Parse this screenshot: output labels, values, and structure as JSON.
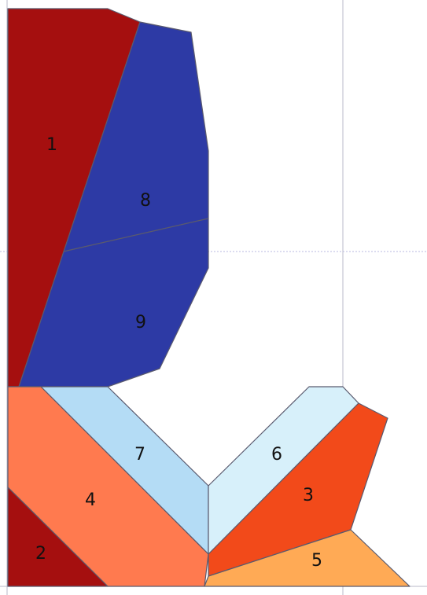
{
  "diagram": {
    "regions": [
      {
        "id": "1",
        "label": "1",
        "color": "#a50f0f"
      },
      {
        "id": "2",
        "label": "2",
        "color": "#a50f0f"
      },
      {
        "id": "3",
        "label": "3",
        "color": "#f24a1a"
      },
      {
        "id": "4",
        "label": "4",
        "color": "#ff7a4f"
      },
      {
        "id": "5",
        "label": "5",
        "color": "#ffaa55"
      },
      {
        "id": "6",
        "label": "6",
        "color": "#d7f0fa"
      },
      {
        "id": "7",
        "label": "7",
        "color": "#b4dcf5"
      },
      {
        "id": "8",
        "label": "8",
        "color": "#2d3aa5"
      },
      {
        "id": "9",
        "label": "9",
        "color": "#2d3aa5"
      }
    ],
    "background_color": "#ffffff",
    "outline_color": "#5a5a6e",
    "guide_color": "#b9b9c8"
  }
}
